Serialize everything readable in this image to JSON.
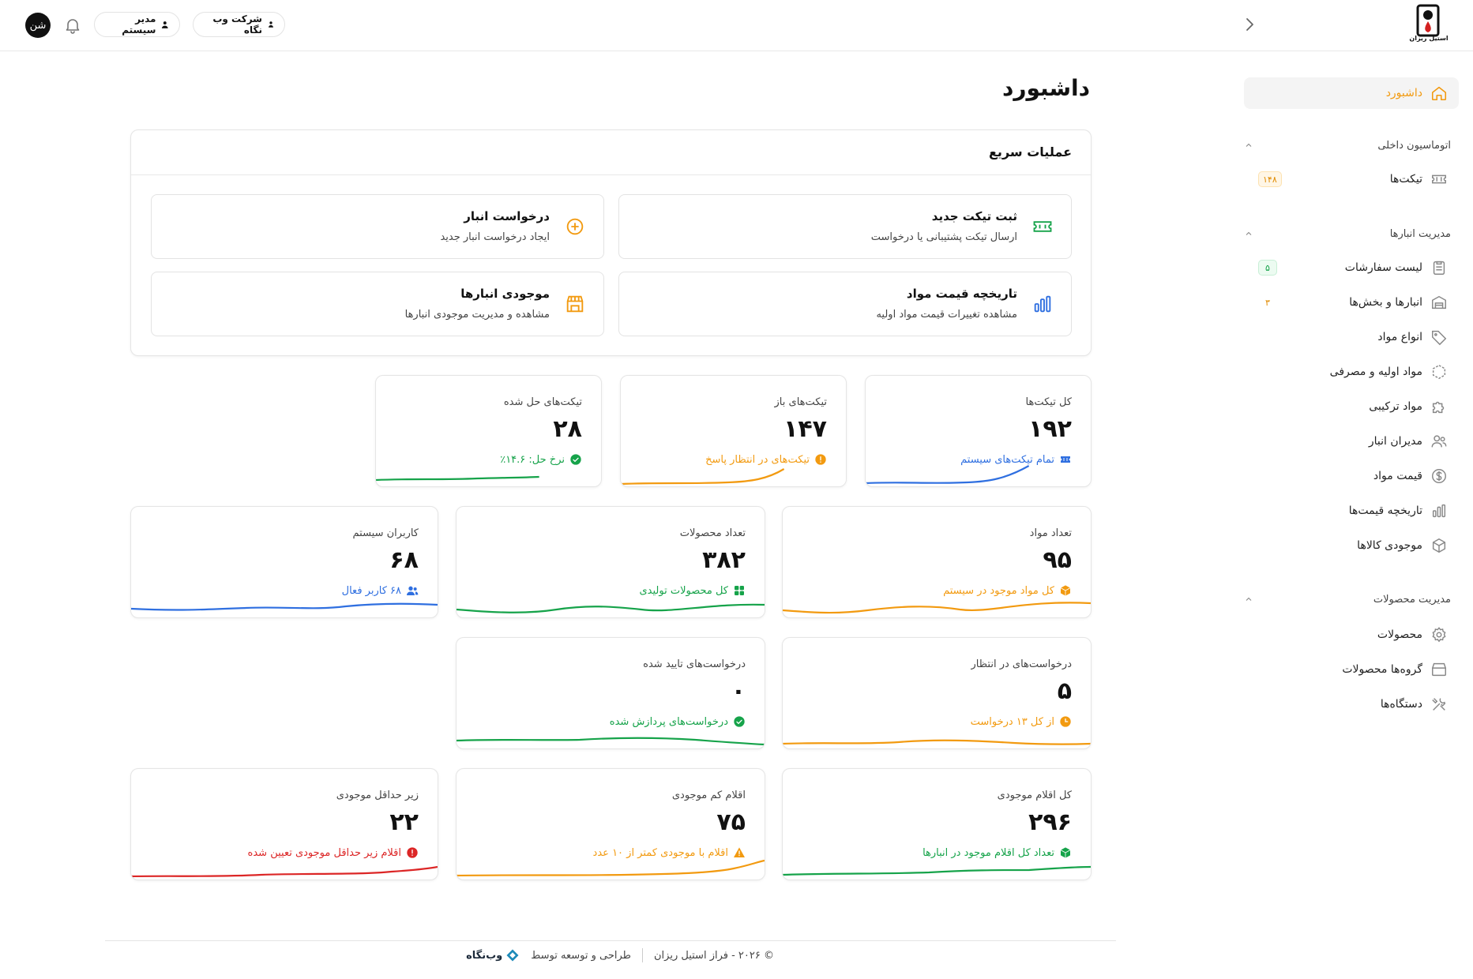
{
  "header": {
    "avatar_text": "شن",
    "admin_label": "مدیر سیستم",
    "company_label": "شرکت وب نگاه",
    "logo_text": "استیل ریزان"
  },
  "sidebar": {
    "dashboard": "داشبورد",
    "sections": [
      {
        "title": "اتوماسیون داخلی"
      },
      {
        "title": "مدیریت انبارها"
      },
      {
        "title": "مدیریت محصولات"
      }
    ],
    "items": [
      {
        "label": "تیکت‌ها",
        "badge": "۱۴۸",
        "icon": "ticket-icon"
      },
      {
        "label": "لیست سفارشات",
        "badge": "۵",
        "icon": "clipboard-icon"
      },
      {
        "label": "انبارها و بخش‌ها",
        "badge": "۳",
        "icon": "warehouse-icon"
      },
      {
        "label": "انواع مواد",
        "icon": "tag-icon"
      },
      {
        "label": "مواد اولیه و مصرفی",
        "icon": "box-dashed-icon"
      },
      {
        "label": "مواد ترکیبی",
        "icon": "puzzle-icon"
      },
      {
        "label": "مدیران انبار",
        "icon": "users-icon"
      },
      {
        "label": "قیمت مواد",
        "icon": "dollar-icon"
      },
      {
        "label": "تاریخچه قیمت‌ها",
        "icon": "chart-icon"
      },
      {
        "label": "موجودی کالاها",
        "icon": "cube-icon"
      },
      {
        "label": "محصولات",
        "icon": "gear-icon"
      },
      {
        "label": "گروه‌ها محصولات",
        "icon": "archive-icon"
      },
      {
        "label": "دستگاه‌ها",
        "icon": "tools-icon"
      }
    ]
  },
  "main": {
    "title": "داشبورد",
    "quick_actions": {
      "title": "عملیات سریع",
      "items": [
        {
          "title": "ثبت تیکت جدید",
          "subtitle": "ارسال تیکت پشتیبانی یا درخواست",
          "icon": "ticket-icon"
        },
        {
          "title": "درخواست انبار",
          "subtitle": "ایجاد درخواست انبار جدید",
          "icon": "plus-circle-icon"
        },
        {
          "title": "تاریخچه قیمت مواد",
          "subtitle": "مشاهده تغییرات قیمت مواد اولیه",
          "icon": "chart-icon"
        },
        {
          "title": "موجودی انبارها",
          "subtitle": "مشاهده و مدیریت موجودی انبارها",
          "icon": "store-icon"
        }
      ]
    },
    "stats": [
      {
        "label": "کل تیکت‌ها",
        "value": "۱۹۲",
        "note": "تمام تیکت‌های سیستم",
        "color": "#2f6fe0",
        "icon": "ticket-icon"
      },
      {
        "label": "تیکت‌های باز",
        "value": "۱۴۷",
        "note": "تیکت‌های در انتظار پاسخ",
        "color": "#f29a10",
        "icon": "alert-circle-icon"
      },
      {
        "label": "تیکت‌های حل شده",
        "value": "۲۸",
        "note": "نرخ حل: ۱۴.۶٪",
        "color": "#16a34a",
        "icon": "check-circle-icon"
      },
      {
        "label": "تعداد مواد",
        "value": "۹۵",
        "note": "کل مواد موجود در سیستم",
        "color": "#f29a10",
        "icon": "box-icon"
      },
      {
        "label": "تعداد محصولات",
        "value": "۳۸۲",
        "note": "کل محصولات تولیدی",
        "color": "#16a34a",
        "icon": "grid-icon"
      },
      {
        "label": "کاربران سیستم",
        "value": "۶۸",
        "note": "۶۸ کاربر فعال",
        "color": "#2f6fe0",
        "icon": "users-icon"
      },
      {
        "label": "درخواست‌های در انتظار",
        "value": "۵",
        "note": "از کل ۱۳ درخواست",
        "color": "#f29a10",
        "icon": "clock-icon"
      },
      {
        "label": "درخواست‌های تایید شده",
        "value": "۰",
        "note": "درخواست‌های پردازش شده",
        "color": "#16a34a",
        "icon": "check-circle-icon"
      },
      {
        "label": "کل اقلام موجودی",
        "value": "۲۹۶",
        "note": "تعداد کل اقلام موجود در انبارها",
        "color": "#16a34a",
        "icon": "box-icon"
      },
      {
        "label": "اقلام کم موجودی",
        "value": "۷۵",
        "note": "اقلام با موجودی کمتر از ۱۰ عدد",
        "color": "#f29a10",
        "icon": "warning-icon"
      },
      {
        "label": "زیر حداقل موجودی",
        "value": "۲۲",
        "note": "اقلام زیر حداقل موجودی تعیین شده",
        "color": "#dc2626",
        "icon": "error-circle-icon"
      }
    ]
  },
  "footer": {
    "copyright": "© ۲۰۲۶ - فراز استیل ریزان",
    "designed_by": "طراحی و توسعه توسط",
    "brand": "وب‌نگاه"
  }
}
